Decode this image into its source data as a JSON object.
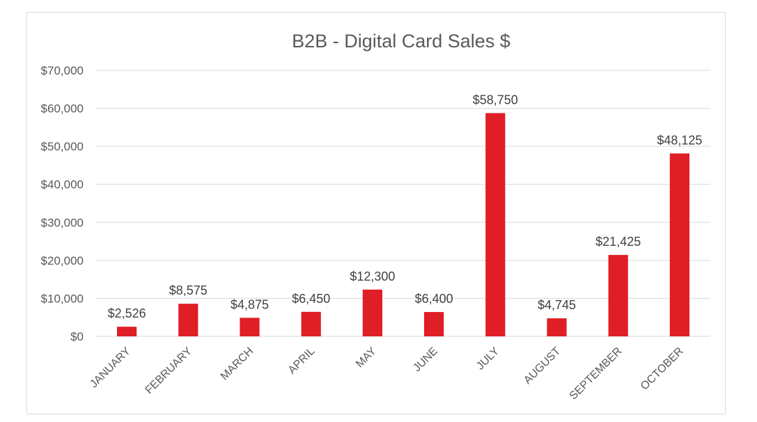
{
  "chart_data": {
    "type": "bar",
    "title": "B2B - Digital Card Sales $",
    "xlabel": "",
    "ylabel": "",
    "categories": [
      "JANUARY",
      "FEBRUARY",
      "MARCH",
      "APRIL",
      "MAY",
      "JUNE",
      "JULY",
      "AUGUST",
      "SEPTEMBER",
      "OCTOBER"
    ],
    "values": [
      2526,
      8575,
      4875,
      6450,
      12300,
      6400,
      58750,
      4745,
      21425,
      48125
    ],
    "value_labels": [
      "$2,526",
      "$8,575",
      "$4,875",
      "$6,450",
      "$12,300",
      "$6,400",
      "$58,750",
      "$4,745",
      "$21,425",
      "$48,125"
    ],
    "ylim": [
      0,
      70000
    ],
    "yticks": [
      0,
      10000,
      20000,
      30000,
      40000,
      50000,
      60000,
      70000
    ],
    "ytick_labels": [
      "$0",
      "$10,000",
      "$20,000",
      "$30,000",
      "$40,000",
      "$50,000",
      "$60,000",
      "$70,000"
    ],
    "grid": true,
    "legend": "none",
    "bar_color": "#e01e26"
  }
}
